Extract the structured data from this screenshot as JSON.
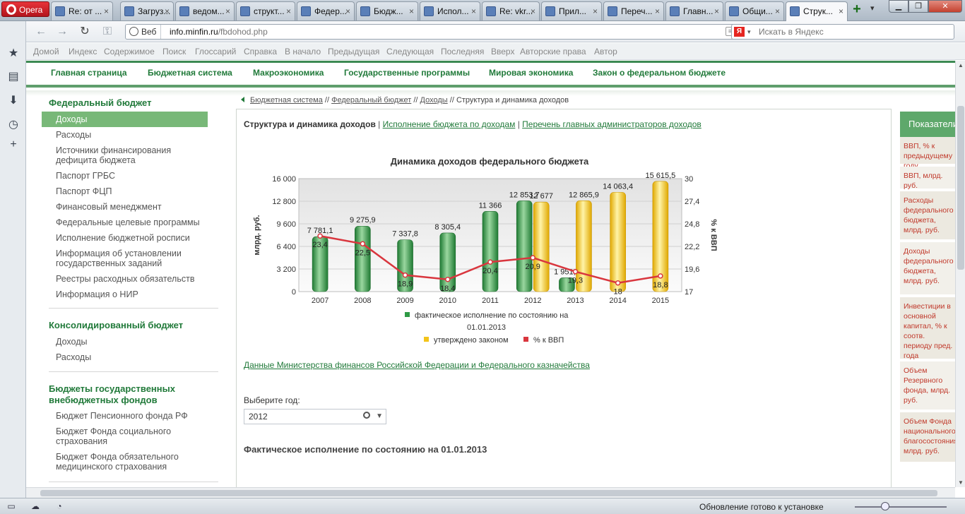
{
  "browser": {
    "menu_label": "Opera",
    "tabs": [
      {
        "label": "Re: от ..."
      },
      {
        "label": "Загруз..."
      },
      {
        "label": "ведом..."
      },
      {
        "label": "структ..."
      },
      {
        "label": "Федер..."
      },
      {
        "label": "Бюдж..."
      },
      {
        "label": "Испол..."
      },
      {
        "label": "Re: vkr..."
      },
      {
        "label": "Прил..."
      },
      {
        "label": "Переч..."
      },
      {
        "label": "Главн..."
      },
      {
        "label": "Общи..."
      },
      {
        "label": "Струк..."
      }
    ],
    "new_tab": "+",
    "web_label": "Веб",
    "url_host": "info.minfin.ru",
    "url_path": "/fbdohod.php",
    "search_placeholder": "Искать в Яндекс",
    "search_badge": "Я",
    "nav_links": [
      "Домой",
      "Индекс",
      "Содержимое",
      "Поиск",
      "Глоссарий",
      "Справка",
      "В начало",
      "Предыдущая",
      "Следующая",
      "Последняя",
      "Вверх",
      "Авторские права",
      "Автор"
    ],
    "status": "Обновление готово к установке"
  },
  "site": {
    "main_menu": [
      "Главная страница",
      "Бюджетная система",
      "Макроэкономика",
      "Государственные программы",
      "Мировая экономика",
      "Закон о федеральном бюджете"
    ],
    "leftnav": {
      "federal": {
        "title": "Федеральный бюджет",
        "items": [
          "Доходы",
          "Расходы",
          "Источники финансирования дефицита бюджета",
          "Паспорт ГРБС",
          "Паспорт ФЦП",
          "Финансовый менеджмент",
          "Федеральные целевые программы",
          "Исполнение бюджетной росписи",
          "Информация об установлении государственных заданий",
          "Реестры расходных обязательств",
          "Информация о НИР"
        ]
      },
      "consolidated": {
        "title": "Консолидированный бюджет",
        "items": [
          "Доходы",
          "Расходы"
        ]
      },
      "funds": {
        "title": "Бюджеты государственных внебюджетных фондов",
        "items": [
          "Бюджет Пенсионного фонда РФ",
          "Бюджет Фонда социального страхования",
          "Бюджет Фонда обязательного медицинского страхования"
        ]
      }
    },
    "breadcrumb": [
      "Бюджетная система",
      "Федеральный бюджет",
      "Доходы"
    ],
    "breadcrumb_sep": " // ",
    "breadcrumb_current": "Структура и динамика доходов",
    "subnav": {
      "current": "Структура и динамика доходов",
      "link1": "Исполнение бюджета по доходам",
      "link2": "Перечень главных администраторов доходов",
      "sep": " | "
    },
    "source_link": "Данные Министерства финансов Российской Федерации и Федерального казначейства",
    "year_label": "Выберите год:",
    "year_value": "2012",
    "fact_heading": "Фактическое исполнение по состоянию на 01.01.2013",
    "right_panel": {
      "title": "Показатели",
      "items": [
        "ВВП, % к предыдущему году",
        "ВВП, млрд. руб.",
        "Расходы федерального бюджета, млрд. руб.",
        "Доходы федерального бюджета, млрд. руб.",
        "Инвестиции в основной капитал, % к соотв. периоду пред. года",
        "Объем Резервного фонда, млрд. руб.",
        "Объем Фонда национального благосостояния, млрд. руб."
      ]
    }
  },
  "chart_data": {
    "type": "bar",
    "title": "Динамика доходов федерального бюджета",
    "categories": [
      "2007",
      "2008",
      "2009",
      "2010",
      "2011",
      "2012",
      "2013",
      "2014",
      "2015"
    ],
    "ylabel": "млрд. руб.",
    "ylim": [
      0,
      16000
    ],
    "yticks": [
      "0",
      "3 200",
      "6 400",
      "9 600",
      "12 800",
      "16 000"
    ],
    "y2label": "% к ВВП",
    "y2lim": [
      17,
      30
    ],
    "y2ticks": [
      "17",
      "19,6",
      "22,2",
      "24,8",
      "27,4",
      "30"
    ],
    "series": [
      {
        "name": "фактическое исполнение по состоянию на 01.01.2013",
        "kind": "bar",
        "color": "#2e9a45",
        "values": [
          7781.1,
          9275.9,
          7337.8,
          8305.4,
          11366,
          12853.7,
          1951.3,
          null,
          null
        ],
        "labels": [
          "7 781,1",
          "9 275,9",
          "7 337,8",
          "8 305,4",
          "11 366",
          "12 853,7",
          "1 951,3",
          "",
          ""
        ]
      },
      {
        "name": "утверждено законом",
        "kind": "bar",
        "color": "#f3c41a",
        "values": [
          null,
          null,
          null,
          null,
          null,
          12677,
          12865.9,
          14063.4,
          15615.5
        ],
        "labels": [
          "",
          "",
          "",
          "",
          "",
          "12 677",
          "12 865,9",
          "14 063,4",
          "15 615,5"
        ]
      },
      {
        "name": "% к ВВП",
        "kind": "line",
        "axis": "y2",
        "color": "#d9363e",
        "values": [
          23.4,
          22.5,
          18.9,
          18.4,
          20.4,
          20.9,
          19.3,
          18,
          18.8
        ],
        "labels": [
          "23,4",
          "22,5",
          "18,9",
          "18,4",
          "20,4",
          "20,9",
          "19,3",
          "18",
          "18,8"
        ]
      }
    ],
    "legend_placement": "bottom"
  }
}
